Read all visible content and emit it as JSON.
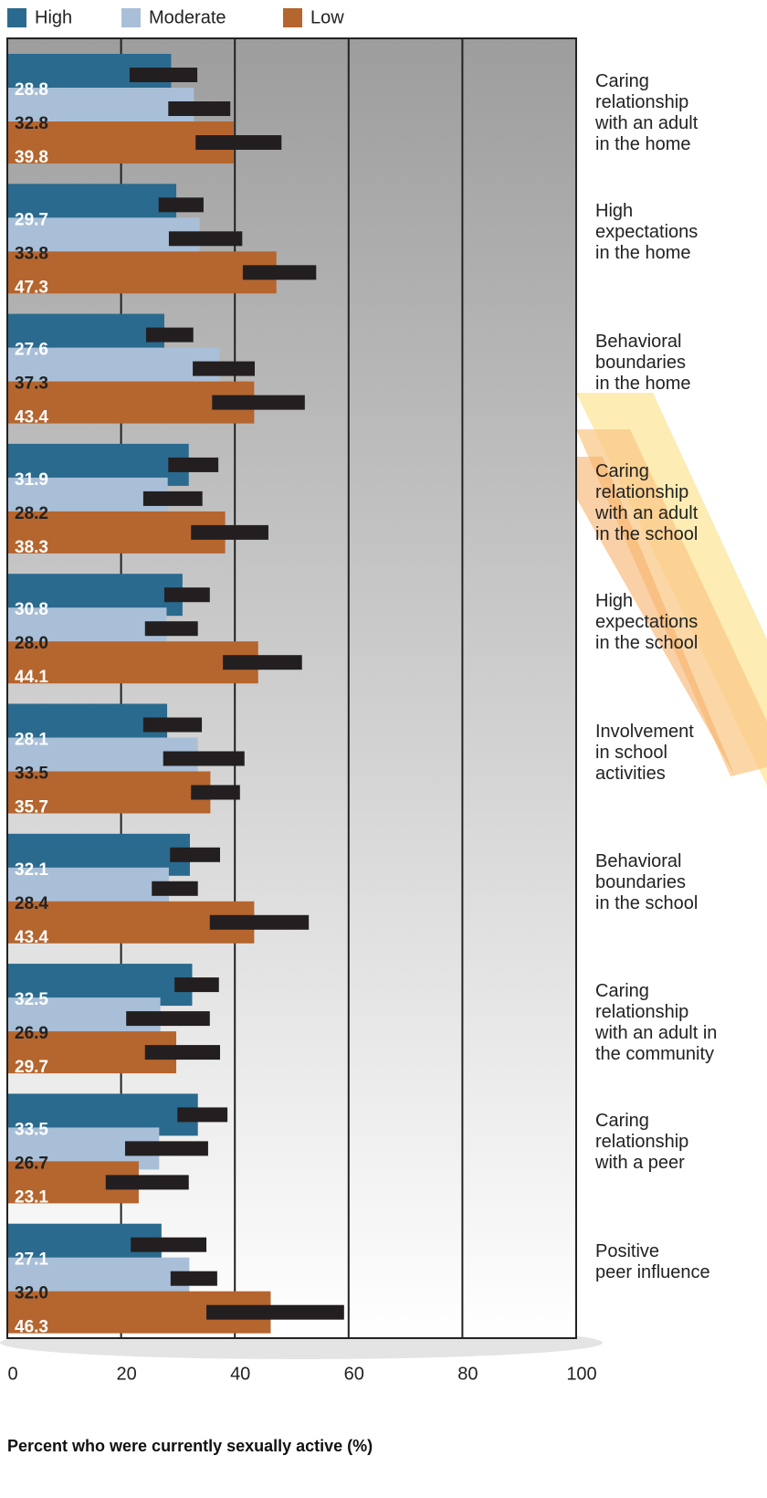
{
  "chart_data": {
    "type": "bar",
    "orientation": "horizontal",
    "x_label": "Percent who were currently sexually active (%)",
    "categories": [
      "Caring\nrelationship\nwith an adult\nin the home",
      "High\nexpectations\nin the home",
      "Behavioral\nboundaries\nin the home",
      "Caring\nrelationship\nwith an adult\nin the school",
      "High\nexpectations\nin the school",
      "Involvement\nin school\nactivities",
      "Behavioral\nboundaries\nin the school",
      "Caring\nrelationship\nwith an adult in\nthe community",
      "Caring\nrelationship\nwith a peer",
      "Positive\npeer influence"
    ],
    "series": [
      {
        "name": "High",
        "color": "#2a6a8e",
        "label_color": "#ffffff",
        "values": [
          28.8,
          29.7,
          27.6,
          31.9,
          30.8,
          28.1,
          32.1,
          32.5,
          33.5,
          27.1
        ],
        "value_labels": [
          "28.8",
          "29.7",
          "27.6",
          "31.9",
          "30.8",
          "28.1",
          "32.1",
          "32.5",
          "33.5",
          "27.1"
        ],
        "errors": [
          [
            21.5,
            33.4
          ],
          [
            26.6,
            34.5
          ],
          [
            24.4,
            32.7
          ],
          [
            28.3,
            37.1
          ],
          [
            27.6,
            35.6
          ],
          [
            23.9,
            34.2
          ],
          [
            28.6,
            37.4
          ],
          [
            29.4,
            37.2
          ],
          [
            29.9,
            38.7
          ],
          [
            21.7,
            35.0
          ]
        ]
      },
      {
        "name": "Moderate",
        "color": "#a9bfd8",
        "label_color": "#222222",
        "values": [
          32.8,
          33.8,
          37.3,
          28.2,
          28.0,
          33.5,
          28.4,
          26.9,
          26.7,
          32.0
        ],
        "value_labels": [
          "32.8",
          "33.8",
          "37.3",
          "28.2",
          "28.0",
          "33.5",
          "28.4",
          "26.9",
          "26.7",
          "32.0"
        ],
        "errors": [
          [
            28.3,
            39.2
          ],
          [
            28.4,
            41.3
          ],
          [
            32.6,
            43.5
          ],
          [
            23.9,
            34.3
          ],
          [
            24.2,
            33.5
          ],
          [
            27.4,
            41.7
          ],
          [
            25.4,
            33.5
          ],
          [
            20.9,
            35.6
          ],
          [
            20.7,
            35.3
          ],
          [
            28.7,
            36.9
          ]
        ]
      },
      {
        "name": "Low",
        "color": "#b5652e",
        "label_color": "#ffffff",
        "values": [
          39.8,
          47.3,
          43.4,
          38.3,
          44.1,
          35.7,
          43.4,
          29.7,
          23.1,
          46.3
        ],
        "value_labels": [
          "39.8",
          "47.3",
          "43.4",
          "38.3",
          "44.1",
          "35.7",
          "43.4",
          "29.7",
          "23.1",
          "46.3"
        ],
        "errors": [
          [
            33.1,
            48.2
          ],
          [
            41.4,
            54.3
          ],
          [
            36.0,
            52.3
          ],
          [
            32.3,
            45.9
          ],
          [
            37.9,
            51.8
          ],
          [
            32.3,
            40.9
          ],
          [
            35.6,
            53.0
          ],
          [
            24.2,
            37.4
          ],
          [
            17.3,
            31.9
          ],
          [
            35.0,
            59.2
          ]
        ]
      }
    ],
    "error_color": "#231f20",
    "xlim": [
      0,
      100
    ],
    "xticks": [
      0,
      20,
      40,
      60,
      80,
      100
    ],
    "grid": true,
    "legend": "top"
  }
}
